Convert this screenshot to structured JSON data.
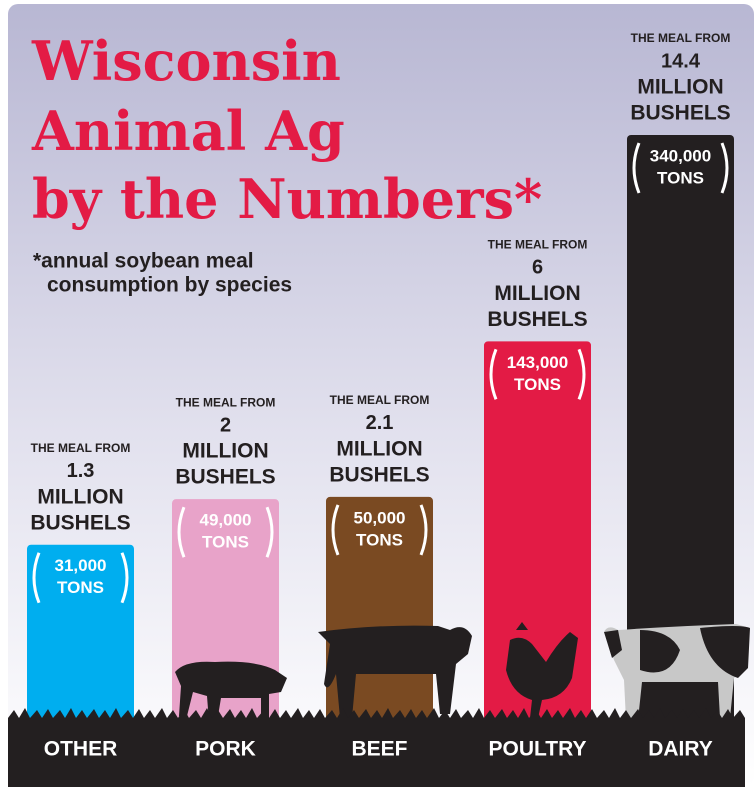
{
  "chart_data": {
    "type": "bar",
    "scale": "sqrt",
    "title_lines": [
      "Wisconsin",
      "Animal Ag",
      "by the Numbers*"
    ],
    "subtitle_lines": [
      "*annual soybean meal",
      "consumption by species"
    ],
    "categories": [
      "OTHER",
      "PORK",
      "BEEF",
      "POULTRY",
      "DAIRY"
    ],
    "values": [
      31000,
      49000,
      50000,
      143000,
      340000
    ],
    "value_labels": [
      "31,000",
      "49,000",
      "50,000",
      "143,000",
      "340,000"
    ],
    "unit_label": "TONS",
    "bushels_prefix": "THE MEAL FROM",
    "bushels": [
      1.3,
      2,
      2.1,
      6,
      14.4
    ],
    "bushels_unit_lines": [
      "MILLION",
      "BUSHELS"
    ],
    "colors": [
      "#00aeef",
      "#e8a3c9",
      "#7a4a22",
      "#e31b45",
      "#231f20"
    ]
  }
}
